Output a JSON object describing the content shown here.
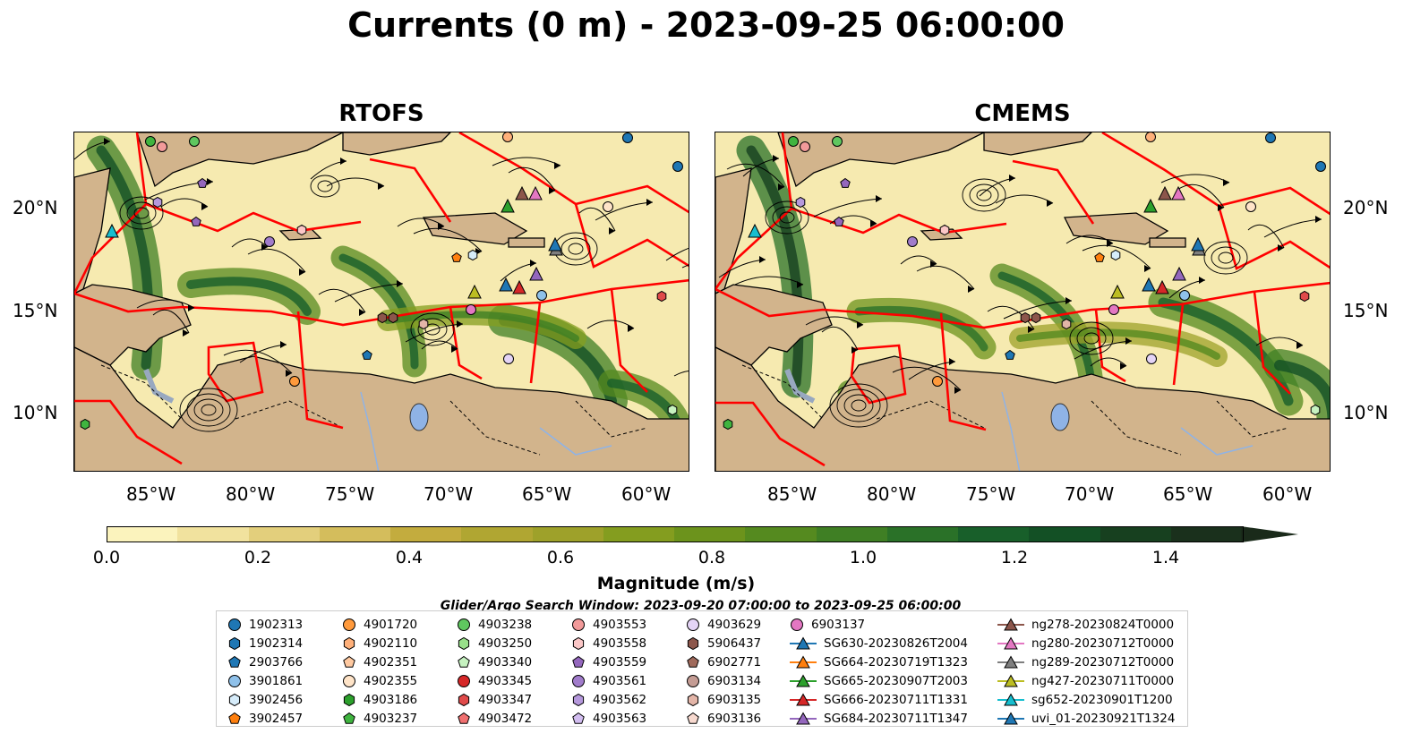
{
  "title": "Currents (0 m) - 2023-09-25 06:00:00",
  "panels": [
    {
      "title": "RTOFS"
    },
    {
      "title": "CMEMS"
    }
  ],
  "lat_ticks": [
    "20°N",
    "15°N",
    "10°N"
  ],
  "lon_ticks": [
    "85°W",
    "80°W",
    "75°W",
    "70°W",
    "65°W",
    "60°W"
  ],
  "colorbar": {
    "label": "Magnitude (m/s)",
    "ticks": [
      "0.0",
      "0.2",
      "0.4",
      "0.6",
      "0.8",
      "1.0",
      "1.2",
      "1.4"
    ],
    "range": [
      0.0,
      1.5
    ],
    "extend": "max",
    "colors": [
      "#fbf3bd",
      "#f1e29e",
      "#e3cf7c",
      "#d4bd5c",
      "#c3ac3e",
      "#b0a632",
      "#9ea12a",
      "#849d1f",
      "#6c931c",
      "#558a1f",
      "#3f7f24",
      "#2a7128",
      "#185f2a",
      "#135025",
      "#17401f",
      "#1a301c"
    ]
  },
  "search_window": "Glider/Argo Search Window: 2023-09-20 07:00:00 to 2023-09-25 06:00:00",
  "map_colors": {
    "land": "#d2b48c",
    "water_low": "#f6eab0",
    "eez": "#ff0000",
    "lake": "#8fb3e6"
  },
  "legend": [
    {
      "label": "1902313",
      "marker": "circle",
      "color": "#1f77b4"
    },
    {
      "label": "1902314",
      "marker": "hexagon",
      "color": "#1f77b4"
    },
    {
      "label": "2903766",
      "marker": "pentagon",
      "color": "#1f77b4"
    },
    {
      "label": "3901861",
      "marker": "circle",
      "color": "#8fc1ea"
    },
    {
      "label": "3902456",
      "marker": "hexagon",
      "color": "#d6ecfa"
    },
    {
      "label": "3902457",
      "marker": "pentagon",
      "color": "#ff7f0e"
    },
    {
      "label": "4901720",
      "marker": "circle",
      "color": "#ff9a3c"
    },
    {
      "label": "4902110",
      "marker": "hexagon",
      "color": "#ffb07a"
    },
    {
      "label": "4902351",
      "marker": "pentagon",
      "color": "#ffc9a0"
    },
    {
      "label": "4902355",
      "marker": "circle",
      "color": "#ffe4c8"
    },
    {
      "label": "4903186",
      "marker": "hexagon",
      "color": "#2ca02c"
    },
    {
      "label": "4903237",
      "marker": "pentagon",
      "color": "#3fb43f"
    },
    {
      "label": "4903238",
      "marker": "circle",
      "color": "#5fc75f"
    },
    {
      "label": "4903250",
      "marker": "hexagon",
      "color": "#98df8a"
    },
    {
      "label": "4903340",
      "marker": "pentagon",
      "color": "#c6f2c0"
    },
    {
      "label": "4903345",
      "marker": "circle",
      "color": "#d62728"
    },
    {
      "label": "4903347",
      "marker": "hexagon",
      "color": "#e04a4a"
    },
    {
      "label": "4903472",
      "marker": "pentagon",
      "color": "#f07070"
    },
    {
      "label": "4903553",
      "marker": "circle",
      "color": "#f29a9a"
    },
    {
      "label": "4903558",
      "marker": "hexagon",
      "color": "#fbc7c7"
    },
    {
      "label": "4903559",
      "marker": "pentagon",
      "color": "#9467bd"
    },
    {
      "label": "4903561",
      "marker": "circle",
      "color": "#a17ccb"
    },
    {
      "label": "4903562",
      "marker": "hexagon",
      "color": "#b598dc"
    },
    {
      "label": "4903563",
      "marker": "pentagon",
      "color": "#d2bdf0"
    },
    {
      "label": "4903629",
      "marker": "circle",
      "color": "#e4d4f6"
    },
    {
      "label": "5906437",
      "marker": "hexagon",
      "color": "#8c564b"
    },
    {
      "label": "6902771",
      "marker": "pentagon",
      "color": "#a06a5c"
    },
    {
      "label": "6903134",
      "marker": "circle",
      "color": "#c49c94"
    },
    {
      "label": "6903135",
      "marker": "hexagon",
      "color": "#e3b5a8"
    },
    {
      "label": "6903136",
      "marker": "pentagon",
      "color": "#f7d9cf"
    },
    {
      "label": "6903137",
      "marker": "circle",
      "color": "#e377c2"
    },
    {
      "label": "SG630-20230826T2004",
      "marker": "triangle",
      "color": "#1f77b4"
    },
    {
      "label": "SG664-20230719T1323",
      "marker": "triangle",
      "color": "#ff7f0e"
    },
    {
      "label": "SG665-20230907T2003",
      "marker": "triangle",
      "color": "#2ca02c"
    },
    {
      "label": "SG666-20230711T1331",
      "marker": "triangle",
      "color": "#d62728"
    },
    {
      "label": "SG684-20230711T1347",
      "marker": "triangle",
      "color": "#9467bd"
    },
    {
      "label": "ng278-20230824T0000",
      "marker": "triangle",
      "color": "#8c564b"
    },
    {
      "label": "ng280-20230712T0000",
      "marker": "triangle",
      "color": "#e377c2"
    },
    {
      "label": "ng289-20230712T0000",
      "marker": "triangle",
      "color": "#7f7f7f"
    },
    {
      "label": "ng427-20230711T0000",
      "marker": "triangle",
      "color": "#bcbd22"
    },
    {
      "label": "sg652-20230901T1200",
      "marker": "triangle",
      "color": "#17becf"
    },
    {
      "label": "uvi_01-20230921T1324",
      "marker": "triangle",
      "color": "#1f77b4"
    }
  ]
}
